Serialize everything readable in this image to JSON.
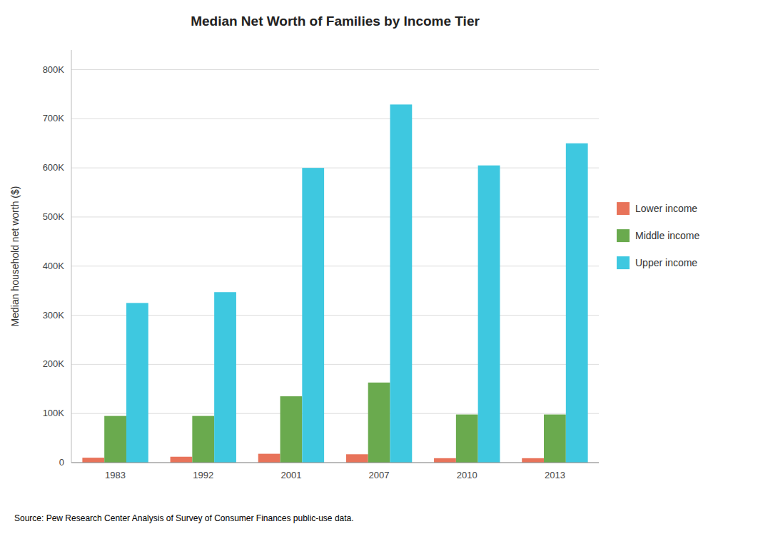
{
  "chart_data": {
    "type": "bar",
    "title": "Median Net Worth of Families by Income Tier",
    "ylabel": "Median household net worth ($)",
    "annotation": "Source: Pew Research Center Analysis of Survey of Consumer Finances public-use data.",
    "categories": [
      "1983",
      "1992",
      "2001",
      "2007",
      "2010",
      "2013"
    ],
    "series": [
      {
        "name": "Lower income",
        "color": "#e8735a",
        "values": [
          10000,
          12000,
          18000,
          17000,
          9000,
          9000
        ]
      },
      {
        "name": "Middle income",
        "color": "#6aaa4e",
        "values": [
          95000,
          95000,
          135000,
          163000,
          98000,
          98000
        ]
      },
      {
        "name": "Upper income",
        "color": "#3ec8e0",
        "values": [
          325000,
          347000,
          600000,
          729000,
          605000,
          650000
        ]
      }
    ],
    "ylim": [
      0,
      840000
    ],
    "yticks": [
      0,
      {
        "value": 100000,
        "label": "100K"
      },
      {
        "value": 200000,
        "label": "200K"
      },
      {
        "value": 300000,
        "label": "300K"
      },
      {
        "value": 400000,
        "label": "400K"
      },
      {
        "value": 500000,
        "label": "500K"
      },
      {
        "value": 600000,
        "label": "600K"
      },
      {
        "value": 700000,
        "label": "700K"
      },
      {
        "value": 800000,
        "label": "800K"
      }
    ],
    "grid": true,
    "legend": "right"
  }
}
